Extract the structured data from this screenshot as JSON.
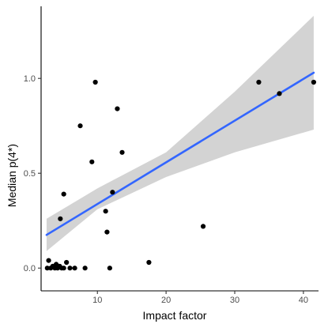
{
  "chart_data": {
    "type": "scatter",
    "xlabel": "Impact factor",
    "ylabel": "Median p(4*)",
    "xlim": [
      1.8,
      42.2
    ],
    "ylim": [
      -0.12,
      1.38
    ],
    "x_ticks": [
      10,
      20,
      30,
      40
    ],
    "y_ticks": [
      0.0,
      0.5,
      1.0
    ],
    "x_tick_labels": [
      "10",
      "20",
      "30",
      "40"
    ],
    "y_tick_labels": [
      "0.0",
      "0.5",
      "1.0"
    ],
    "grid": false,
    "points": [
      {
        "x": 2.7,
        "y": 0.0
      },
      {
        "x": 2.9,
        "y": 0.04
      },
      {
        "x": 3.2,
        "y": 0.0
      },
      {
        "x": 3.5,
        "y": 0.01
      },
      {
        "x": 3.8,
        "y": 0.0
      },
      {
        "x": 4.0,
        "y": 0.02
      },
      {
        "x": 4.2,
        "y": 0.0
      },
      {
        "x": 4.5,
        "y": 0.01
      },
      {
        "x": 4.8,
        "y": 0.0
      },
      {
        "x": 5.1,
        "y": 0.0
      },
      {
        "x": 4.6,
        "y": 0.26
      },
      {
        "x": 5.1,
        "y": 0.39
      },
      {
        "x": 5.5,
        "y": 0.03
      },
      {
        "x": 6.0,
        "y": 0.0
      },
      {
        "x": 6.7,
        "y": 0.0
      },
      {
        "x": 7.5,
        "y": 0.75
      },
      {
        "x": 8.2,
        "y": 0.0
      },
      {
        "x": 9.2,
        "y": 0.56
      },
      {
        "x": 9.7,
        "y": 0.98
      },
      {
        "x": 11.2,
        "y": 0.3
      },
      {
        "x": 11.4,
        "y": 0.19
      },
      {
        "x": 11.8,
        "y": 0.0
      },
      {
        "x": 12.2,
        "y": 0.4
      },
      {
        "x": 12.9,
        "y": 0.84
      },
      {
        "x": 13.6,
        "y": 0.61
      },
      {
        "x": 17.5,
        "y": 0.03
      },
      {
        "x": 25.4,
        "y": 0.22
      },
      {
        "x": 33.5,
        "y": 0.98
      },
      {
        "x": 36.5,
        "y": 0.92
      },
      {
        "x": 41.5,
        "y": 0.98
      }
    ],
    "fit_line": {
      "x": [
        2.6,
        41.5
      ],
      "y": [
        0.175,
        1.03
      ],
      "color": "#3366ff"
    },
    "confidence_band": {
      "x": [
        2.6,
        10,
        20,
        30,
        41.5
      ],
      "lower": [
        0.09,
        0.31,
        0.48,
        0.61,
        0.73
      ],
      "upper": [
        0.26,
        0.42,
        0.61,
        0.93,
        1.33
      ],
      "color": "#d3d3d3"
    },
    "point_color": "#000000"
  }
}
